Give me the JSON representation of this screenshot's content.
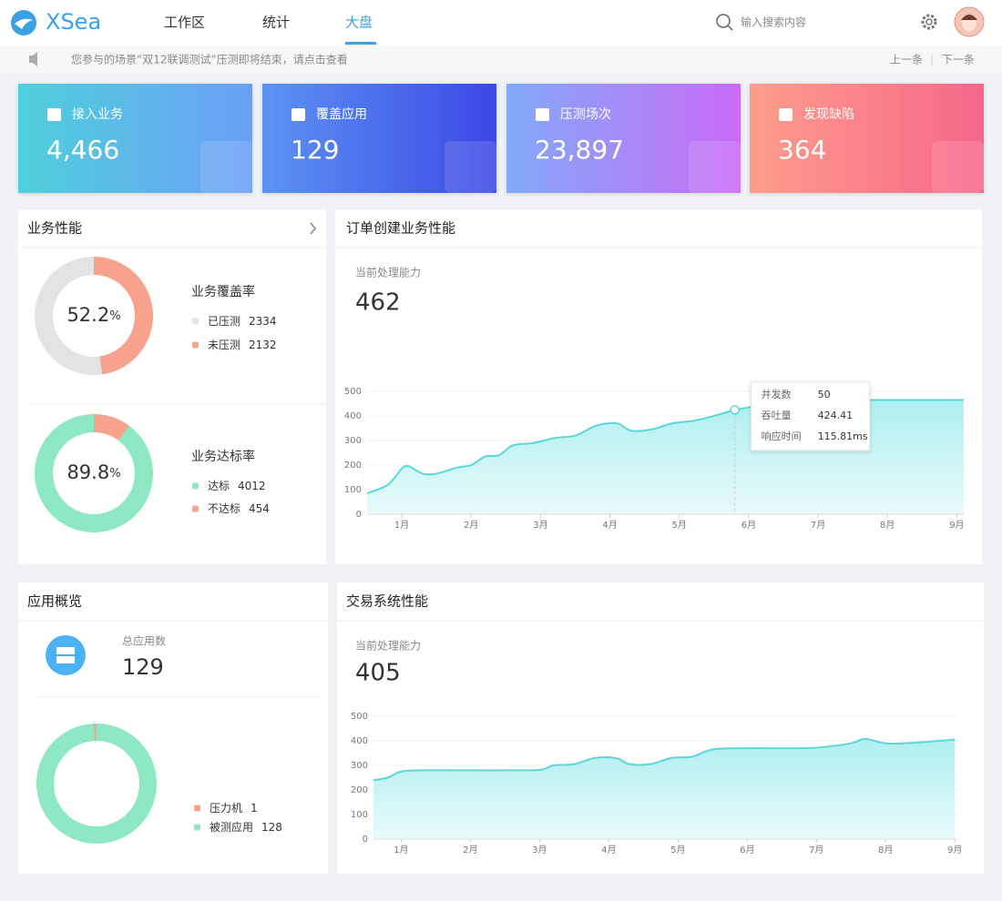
{
  "header": {
    "logo": "XSea",
    "nav": [
      "工作区",
      "统计",
      "大盘"
    ],
    "search_placeholder": "输入搜索内容"
  },
  "notice": {
    "text": "您参与的场景“双12联调测试”压测即将结束，请点击查看",
    "prev": "上一条",
    "next": "下一条"
  },
  "stats": [
    {
      "label": "接入业务",
      "value": "4,466"
    },
    {
      "label": "覆盖应用",
      "value": "129"
    },
    {
      "label": "压测场次",
      "value": "23,897"
    },
    {
      "label": "发现缺陷",
      "value": "364"
    }
  ],
  "business": {
    "title": "业务性能",
    "donuts": [
      {
        "title": "业务覆盖率",
        "percent": 52.2,
        "unit": "%",
        "items": [
          {
            "name": "已压测",
            "value": 2334,
            "color": "#e3e3e3"
          },
          {
            "name": "未压测",
            "value": 2132,
            "color": "#f7a28c"
          }
        ]
      },
      {
        "title": "业务达标率",
        "percent": 89.8,
        "unit": "%",
        "items": [
          {
            "name": "达标",
            "value": 4012,
            "color": "#8de8c3"
          },
          {
            "name": "不达标",
            "value": 454,
            "color": "#f7a28c"
          }
        ]
      }
    ]
  },
  "order": {
    "title": "订单创建业务性能",
    "metric_label": "当前处理能力",
    "metric": 462,
    "chart": {
      "type": "area",
      "color": "#5cd6d8",
      "x": [
        0.5,
        0.8,
        1.0,
        1.1,
        1.3,
        1.5,
        1.8,
        2.0,
        2.2,
        2.4,
        2.6,
        2.9,
        3.2,
        3.5,
        3.8,
        4.1,
        4.3,
        4.6,
        4.9,
        5.2,
        5.5,
        5.8,
        6.1,
        6.5,
        7.0,
        9.1
      ],
      "values": [
        85,
        120,
        185,
        195,
        165,
        165,
        190,
        200,
        235,
        240,
        280,
        290,
        310,
        320,
        360,
        370,
        340,
        345,
        370,
        380,
        400,
        424,
        440,
        465,
        465,
        465
      ],
      "xlim": [
        0.5,
        9.1
      ],
      "ylim": [
        0,
        500
      ],
      "yticks": [
        0,
        100,
        200,
        300,
        400,
        500
      ],
      "xticks": [
        {
          "value": 1,
          "label": "1月"
        },
        {
          "value": 2,
          "label": "2月"
        },
        {
          "value": 3,
          "label": "3月"
        },
        {
          "value": 4,
          "label": "4月"
        },
        {
          "value": 5,
          "label": "5月"
        },
        {
          "value": 6,
          "label": "6月"
        },
        {
          "value": 7,
          "label": "7月"
        },
        {
          "value": 8,
          "label": "8月"
        },
        {
          "value": 9,
          "label": "9月"
        }
      ],
      "tooltip": {
        "x": 5.8,
        "rows": [
          {
            "label": "并发数",
            "value": 50
          },
          {
            "label": "吞吐量",
            "value": 424.41
          },
          {
            "label": "响应时间",
            "value": 115.81,
            "value_label": "115.81ms"
          }
        ]
      }
    }
  },
  "apps": {
    "title": "应用概览",
    "total_label": "总应用数",
    "total": 129,
    "donut": {
      "items": [
        {
          "name": "压力机",
          "value": 1,
          "color": "#f7a28c"
        },
        {
          "name": "被测应用",
          "value": 128,
          "color": "#8de8c3"
        }
      ]
    }
  },
  "trade": {
    "title": "交易系统性能",
    "metric_label": "当前处理能力",
    "metric": 405,
    "chart": {
      "type": "area",
      "color": "#5cd6d8",
      "x": [
        0.6,
        0.8,
        1.0,
        1.3,
        2.0,
        2.5,
        3.0,
        3.2,
        3.5,
        3.8,
        4.1,
        4.3,
        4.6,
        4.9,
        5.2,
        5.5,
        6.0,
        6.5,
        7.0,
        7.5,
        7.7,
        8.0,
        8.4,
        9.0
      ],
      "values": [
        240,
        250,
        275,
        280,
        280,
        280,
        282,
        300,
        305,
        330,
        330,
        305,
        305,
        330,
        335,
        365,
        370,
        370,
        372,
        390,
        408,
        390,
        392,
        405
      ],
      "xlim": [
        0.6,
        9.05
      ],
      "ylim": [
        0,
        500
      ],
      "yticks": [
        0,
        100,
        200,
        300,
        400,
        500
      ],
      "xticks": [
        {
          "value": 1,
          "label": "1月"
        },
        {
          "value": 2,
          "label": "2月"
        },
        {
          "value": 3,
          "label": "3月"
        },
        {
          "value": 4,
          "label": "4月"
        },
        {
          "value": 5,
          "label": "5月"
        },
        {
          "value": 6,
          "label": "6月"
        },
        {
          "value": 7,
          "label": "7月"
        },
        {
          "value": 8,
          "label": "8月"
        },
        {
          "value": 9,
          "label": "9月"
        }
      ]
    }
  }
}
